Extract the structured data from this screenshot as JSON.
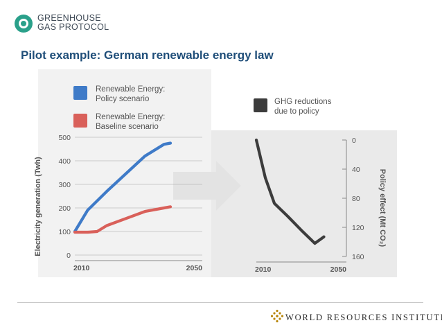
{
  "header": {
    "logo_lines": [
      "GREENHOUSE",
      "GAS PROTOCOL"
    ],
    "slide_title": "Pilot example: German renewable energy law"
  },
  "footer": {
    "organization": "WORLD RESOURCES INSTITUTE"
  },
  "colors": {
    "policy": "#3f7bc8",
    "baseline": "#d9605a",
    "ghg": "#3c3c3c",
    "title": "#1f4e79",
    "logo_teal": "#2aa08a"
  },
  "chart_data": [
    {
      "type": "line",
      "ylabel": "Electricity generation (Twh)",
      "xlabel": "",
      "x_ticks": [
        "2010",
        "2050"
      ],
      "ylim": [
        0,
        500
      ],
      "y_ticks": [
        "0",
        "100",
        "200",
        "300",
        "400",
        "500"
      ],
      "grid": true,
      "series": [
        {
          "name": "Renewable Energy: Policy scenario",
          "label_lines": [
            "Renewable Energy:",
            "Policy scenario"
          ],
          "x": [
            2010,
            2014,
            2020,
            2026,
            2032,
            2038,
            2040
          ],
          "values": [
            100,
            190,
            270,
            345,
            420,
            470,
            475
          ]
        },
        {
          "name": "Renewable Energy: Baseline scenario",
          "label_lines": [
            "Renewable Energy:",
            "Baseline scenario"
          ],
          "x": [
            2010,
            2014,
            2017,
            2020,
            2026,
            2032,
            2038,
            2040
          ],
          "values": [
            97,
            97,
            100,
            125,
            155,
            185,
            200,
            205
          ]
        }
      ]
    },
    {
      "type": "line",
      "ylabel": "Policy effect (Mt CO₂)",
      "xlabel": "",
      "x_ticks": [
        "2010",
        "2050"
      ],
      "ylim": [
        0,
        160
      ],
      "y_ticks": [
        "0",
        "40",
        "80",
        "120",
        "160"
      ],
      "y_inverted": true,
      "grid": false,
      "series": [
        {
          "name": "GHG reductions due to policy",
          "label_lines": [
            "GHG reductions",
            "due to policy"
          ],
          "x": [
            2010,
            2014,
            2018,
            2024,
            2030,
            2036,
            2040
          ],
          "values": [
            0,
            52,
            87,
            105,
            124,
            142,
            133
          ]
        }
      ]
    }
  ]
}
